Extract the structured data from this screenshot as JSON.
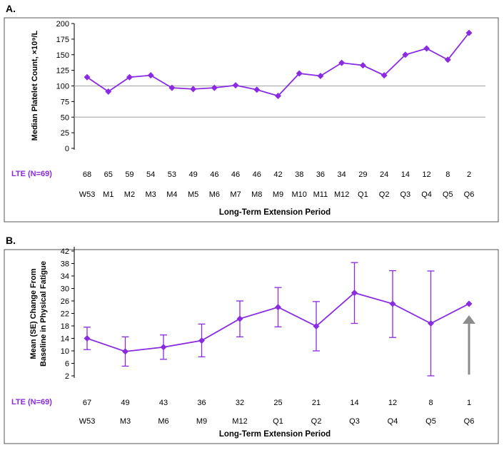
{
  "accent_color": "#8a2be2",
  "arrow_color": "#8c8c8c",
  "chart_data": [
    {
      "type": "line",
      "panel_label": "A.",
      "ylabel": "Median Platelet Count, ×10⁹/L",
      "xlabel": "Long-Term Extension Period",
      "x": [
        "W53",
        "M1",
        "M2",
        "M3",
        "M4",
        "M5",
        "M6",
        "M7",
        "M8",
        "M9",
        "M10",
        "M11",
        "M12",
        "Q1",
        "Q2",
        "Q3",
        "Q4",
        "Q5",
        "Q6"
      ],
      "series": [
        {
          "values": [
            114,
            91,
            114,
            117,
            97,
            95,
            97,
            101,
            94,
            84,
            120,
            116,
            137,
            133,
            117,
            150,
            160,
            142,
            185
          ]
        }
      ],
      "ylim": [
        0,
        200
      ],
      "yticks": [
        "0",
        "25",
        "50",
        "75",
        "100",
        "125",
        "150",
        "175",
        "200"
      ],
      "reference_lines": [
        50,
        100
      ],
      "n_label": "LTE (N=69)",
      "n_values": [
        "68",
        "65",
        "59",
        "54",
        "53",
        "49",
        "46",
        "46",
        "46",
        "42",
        "38",
        "36",
        "34",
        "29",
        "24",
        "14",
        "12",
        "8",
        "2"
      ],
      "grid": false
    },
    {
      "type": "line",
      "panel_label": "B.",
      "ylabel": [
        "Mean (SE) Change From",
        "Baseline in Physical Fatigue"
      ],
      "xlabel": "Long-Term Extension Period",
      "x": [
        "W53",
        "M3",
        "M6",
        "M9",
        "M12",
        "Q1",
        "Q2",
        "Q3",
        "Q4",
        "Q5",
        "Q6"
      ],
      "series": [
        {
          "values": [
            14,
            9.8,
            11.2,
            13.3,
            20.3,
            24,
            17.9,
            28.6,
            25.1,
            18.8,
            25.1
          ],
          "error_low": [
            10.4,
            5.1,
            7.3,
            8.1,
            14.5,
            17.7,
            10,
            18.8,
            14.3,
            2,
            null
          ],
          "error_high": [
            17.6,
            14.5,
            15.1,
            18.6,
            26,
            30.3,
            25.8,
            38.3,
            35.7,
            35.6,
            null
          ]
        }
      ],
      "ylim": [
        2,
        42
      ],
      "yticks": [
        "2",
        "6",
        "10",
        "14",
        "18",
        "22",
        "26",
        "30",
        "34",
        "38",
        "42"
      ],
      "n_label": "LTE (N=69)",
      "n_values": [
        "67",
        "49",
        "43",
        "36",
        "32",
        "25",
        "21",
        "14",
        "12",
        "8",
        "1"
      ],
      "arrow_at": "Q6",
      "grid": false
    }
  ]
}
